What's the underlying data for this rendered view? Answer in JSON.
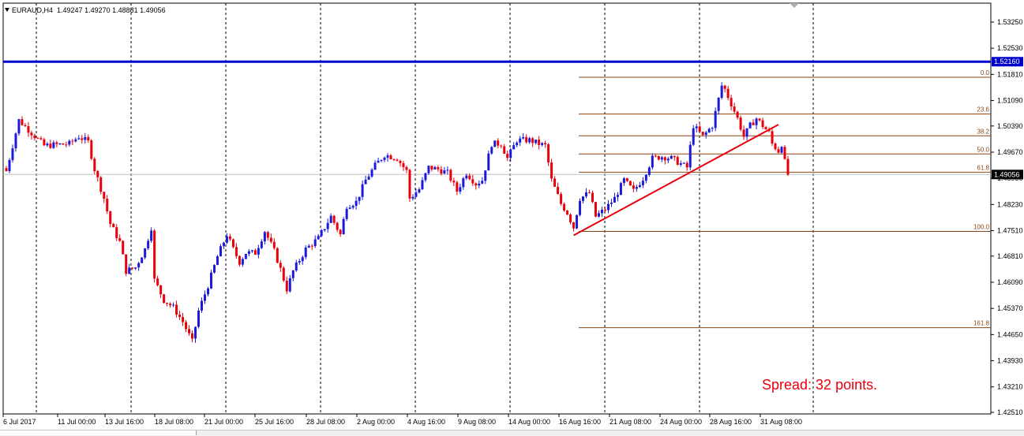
{
  "header": {
    "symbol": "EURAUD,H4",
    "ohlc": "1.49247 1.49270 1.48881 1.49056"
  },
  "annotation": {
    "spread": "Spread: 32 points."
  },
  "colors": {
    "bull": "#1a1ad8",
    "bear": "#e8000b",
    "resistance": "#0000cc",
    "trendline": "#e8000b",
    "fib": "#8b4513",
    "bidline": "#c0c0c0"
  },
  "chart_data": {
    "type": "candlestick",
    "symbol": "EURAUD",
    "timeframe": "H4",
    "ylim": [
      1.4251,
      1.5361
    ],
    "yticks": [
      "1.53250",
      "1.52530",
      "1.51810",
      "1.51090",
      "1.50390",
      "1.49670",
      "1.48950",
      "1.48230",
      "1.47510",
      "1.46810",
      "1.46090",
      "1.45370",
      "1.44650",
      "1.43930",
      "1.43210",
      "1.42510"
    ],
    "xlabels": [
      "6 Jul 2017",
      "11 Jul 00:00",
      "13 Jul 16:00",
      "18 Jul 08:00",
      "21 Jul 00:00",
      "25 Jul 16:00",
      "28 Jul 08:00",
      "2 Aug 00:00",
      "4 Aug 16:00",
      "9 Aug 08:00",
      "14 Aug 00:00",
      "16 Aug 16:00",
      "21 Aug 08:00",
      "24 Aug 00:00",
      "28 Aug 16:00",
      "31 Aug 08:00"
    ],
    "grid": "vertical-dashed",
    "resistance_level": {
      "price": 1.5216,
      "label": "1.52160"
    },
    "current_price": {
      "price": 1.49056,
      "label": "1.49056"
    },
    "fibonacci": [
      {
        "level": "0.0",
        "price": 1.5173
      },
      {
        "level": "23.6",
        "price": 1.5072
      },
      {
        "level": "38.2",
        "price": 1.5012
      },
      {
        "level": "50.0",
        "price": 1.4962
      },
      {
        "level": "61.8",
        "price": 1.4912
      },
      {
        "level": "100.0",
        "price": 1.4749
      },
      {
        "level": "161.8",
        "price": 1.4484
      }
    ],
    "trendline": {
      "start": {
        "bar": 180,
        "price": 1.4738
      },
      "end": {
        "bar": 245,
        "price": 1.5043
      }
    },
    "path": [
      [
        0,
        1.4915
      ],
      [
        4,
        1.5055
      ],
      [
        12,
        1.4985
      ],
      [
        20,
        1.499
      ],
      [
        23,
        1.501
      ],
      [
        26,
        1.4995
      ],
      [
        28,
        1.492
      ],
      [
        31,
        1.484
      ],
      [
        33,
        1.477
      ],
      [
        36,
        1.472
      ],
      [
        38,
        1.464
      ],
      [
        41,
        1.465
      ],
      [
        44,
        1.47
      ],
      [
        46,
        1.476
      ],
      [
        47,
        1.4615
      ],
      [
        50,
        1.456
      ],
      [
        53,
        1.454
      ],
      [
        56,
        1.45
      ],
      [
        59,
        1.4445
      ],
      [
        61,
        1.453
      ],
      [
        64,
        1.46
      ],
      [
        67,
        1.468
      ],
      [
        70,
        1.474
      ],
      [
        72,
        1.47
      ],
      [
        74,
        1.4665
      ],
      [
        76,
        1.469
      ],
      [
        79,
        1.469
      ],
      [
        82,
        1.475
      ],
      [
        85,
        1.4695
      ],
      [
        87,
        1.4645
      ],
      [
        89,
        1.459
      ],
      [
        91,
        1.464
      ],
      [
        95,
        1.47
      ],
      [
        99,
        1.473
      ],
      [
        103,
        1.479
      ],
      [
        106,
        1.474
      ],
      [
        108,
        1.482
      ],
      [
        111,
        1.483
      ],
      [
        114,
        1.489
      ],
      [
        117,
        1.493
      ],
      [
        120,
        1.496
      ],
      [
        124,
        1.495
      ],
      [
        127,
        1.4915
      ],
      [
        128,
        1.484
      ],
      [
        131,
        1.4865
      ],
      [
        134,
        1.4925
      ],
      [
        137,
        1.492
      ],
      [
        140,
        1.491
      ],
      [
        143,
        1.486
      ],
      [
        146,
        1.491
      ],
      [
        149,
        1.488
      ],
      [
        151,
        1.489
      ],
      [
        154,
        1.499
      ],
      [
        157,
        1.499
      ],
      [
        159,
        1.495
      ],
      [
        162,
        1.5
      ],
      [
        166,
        1.5
      ],
      [
        169,
        1.499
      ],
      [
        171,
        1.4985
      ],
      [
        173,
        1.489
      ],
      [
        176,
        1.4825
      ],
      [
        178,
        1.48
      ],
      [
        180,
        1.476
      ],
      [
        182,
        1.484
      ],
      [
        185,
        1.4855
      ],
      [
        187,
        1.479
      ],
      [
        190,
        1.481
      ],
      [
        193,
        1.484
      ],
      [
        196,
        1.489
      ],
      [
        199,
        1.486
      ],
      [
        202,
        1.4895
      ],
      [
        205,
        1.495
      ],
      [
        208,
        1.4955
      ],
      [
        211,
        1.495
      ],
      [
        214,
        1.4935
      ],
      [
        216,
        1.4925
      ],
      [
        218,
        1.504
      ],
      [
        221,
        1.501
      ],
      [
        224,
        1.504
      ],
      [
        227,
        1.515
      ],
      [
        228,
        1.514
      ],
      [
        230,
        1.51
      ],
      [
        232,
        1.506
      ],
      [
        234,
        1.501
      ],
      [
        236,
        1.504
      ],
      [
        238,
        1.506
      ],
      [
        240,
        1.504
      ],
      [
        242,
        1.502
      ],
      [
        243,
        1.499
      ],
      [
        245,
        1.497
      ],
      [
        246,
        1.499
      ],
      [
        247,
        1.494
      ],
      [
        248,
        1.49056
      ]
    ]
  }
}
